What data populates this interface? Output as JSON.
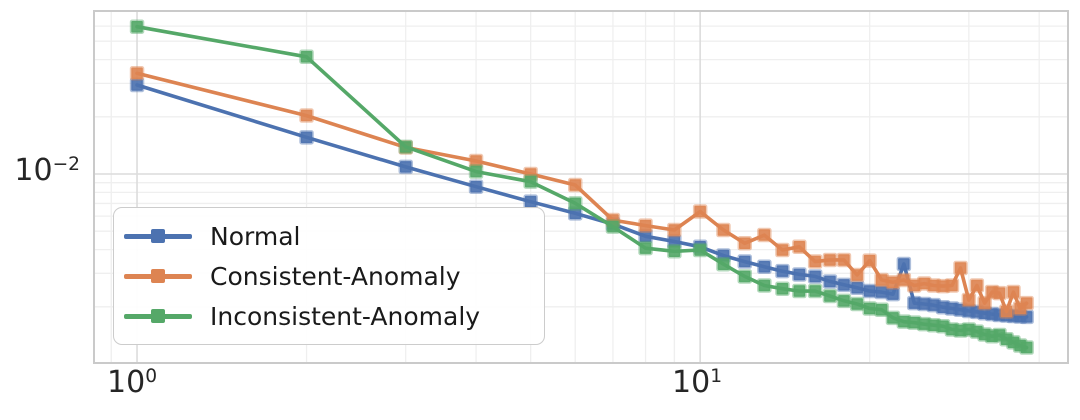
{
  "chart_data": {
    "type": "line",
    "title": "",
    "xlabel": "",
    "ylabel": "",
    "x_scale": "log",
    "y_scale": "log",
    "xlim": [
      0.8387,
      45.0
    ],
    "ylim": [
      0.001012,
      0.0721
    ],
    "grid": true,
    "legend_position": "lower left",
    "marker": "square",
    "x": [
      1,
      2,
      3,
      4,
      5,
      6,
      7,
      8,
      9,
      10,
      11,
      12,
      13,
      14,
      15,
      16,
      17,
      18,
      19,
      20,
      21,
      22,
      23,
      24,
      25,
      26,
      27,
      28,
      29,
      30,
      31,
      32,
      33,
      34,
      35,
      36,
      37,
      38
    ],
    "series": [
      {
        "name": "Normal",
        "color": "#4C72B0",
        "values": [
          0.0294,
          0.0156,
          0.0109,
          0.00857,
          0.00715,
          0.00621,
          0.00545,
          0.0047,
          0.00441,
          0.00414,
          0.00372,
          0.00346,
          0.00325,
          0.00308,
          0.00296,
          0.00289,
          0.00272,
          0.00261,
          0.00252,
          0.00242,
          0.00239,
          0.00233,
          0.00336,
          0.00209,
          0.00207,
          0.00204,
          0.00199,
          0.00196,
          0.00193,
          0.0019,
          0.00188,
          0.00185,
          0.00183,
          0.00181,
          0.0018,
          0.00179,
          0.00178,
          0.00177
        ]
      },
      {
        "name": "Consistent-Anomaly",
        "color": "#DD8452",
        "values": [
          0.0339,
          0.0203,
          0.0138,
          0.0117,
          0.01,
          0.00875,
          0.00572,
          0.00535,
          0.00507,
          0.00634,
          0.00507,
          0.00432,
          0.00477,
          0.00398,
          0.00414,
          0.00346,
          0.00353,
          0.00353,
          0.00294,
          0.0035,
          0.00277,
          0.00269,
          0.00277,
          0.00259,
          0.00265,
          0.00259,
          0.00257,
          0.00259,
          0.0032,
          0.00217,
          0.00259,
          0.00209,
          0.00239,
          0.00236,
          0.00189,
          0.00239,
          0.00196,
          0.00209
        ]
      },
      {
        "name": "Inconsistent-Anomaly",
        "color": "#55A868",
        "values": [
          0.0596,
          0.0414,
          0.0139,
          0.0103,
          0.00911,
          0.00701,
          0.00528,
          0.00407,
          0.00392,
          0.00398,
          0.00335,
          0.00289,
          0.00259,
          0.00249,
          0.00242,
          0.00242,
          0.00228,
          0.00215,
          0.00207,
          0.00196,
          0.00193,
          0.00175,
          0.00167,
          0.00165,
          0.00162,
          0.0016,
          0.00158,
          0.00152,
          0.0015,
          0.00152,
          0.00148,
          0.00143,
          0.0014,
          0.00142,
          0.00135,
          0.0013,
          0.00125,
          0.00122
        ]
      }
    ],
    "x_ticks": [
      {
        "base": "10",
        "exp": "0",
        "value": 1
      },
      {
        "base": "10",
        "exp": "1",
        "value": 10
      }
    ],
    "y_ticks": [
      {
        "base": "10",
        "exp": "−2",
        "value": 0.01
      }
    ],
    "x_grid_major": [
      1,
      10
    ],
    "x_grid_minor": [
      0.9,
      2,
      3,
      4,
      5,
      6,
      7,
      8,
      9,
      20,
      30,
      40
    ],
    "y_grid_major": [
      0.01
    ],
    "y_grid_minor": [
      0.06,
      0.05,
      0.04,
      0.03,
      0.02,
      0.009,
      0.008,
      0.007,
      0.006,
      0.005,
      0.004,
      0.003,
      0.002
    ],
    "colors": {
      "grid_minor": "#efefef",
      "grid_major": "#dcdcdc",
      "spine": "#cacaca",
      "tick_text": "#262626"
    }
  }
}
